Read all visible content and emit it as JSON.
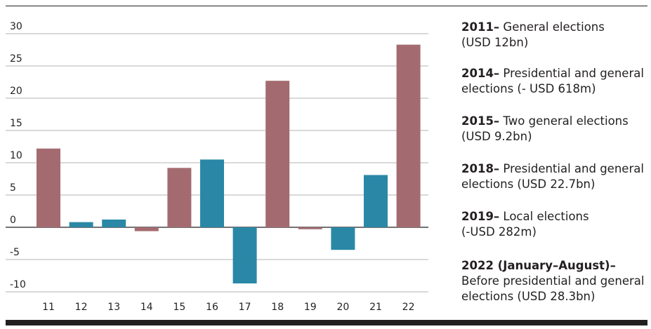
{
  "chart_data": {
    "type": "bar",
    "title": "",
    "xlabel": "",
    "ylabel": "",
    "categories": [
      "11",
      "12",
      "13",
      "14",
      "15",
      "16",
      "17",
      "18",
      "19",
      "20",
      "21",
      "22"
    ],
    "values": [
      12.2,
      0.8,
      1.2,
      -0.6,
      9.2,
      10.5,
      -8.7,
      22.7,
      -0.3,
      -3.5,
      8.1,
      28.3
    ],
    "bar_types": [
      "election",
      "non-election",
      "non-election",
      "election",
      "election",
      "non-election",
      "non-election",
      "election",
      "election",
      "non-election",
      "non-election",
      "election"
    ],
    "colors": {
      "election": "#a36b70",
      "non-election": "#2a88a6"
    },
    "yticks": [
      "30",
      "25",
      "20",
      "15",
      "10",
      "5",
      "0",
      "-5",
      "-10"
    ],
    "ytick_values": [
      30,
      25,
      20,
      15,
      10,
      5,
      0,
      -5,
      -10
    ],
    "ylim": [
      -10,
      30
    ],
    "grid": true
  },
  "notes": [
    {
      "year": "2011–",
      "line1": " General elections",
      "line2": "(USD 12bn)"
    },
    {
      "year": "2014–",
      "line1": " Presidential and general",
      "line2": "elections (- USD 618m)"
    },
    {
      "year": "2015–",
      "line1": " Two general elections",
      "line2": "(USD 9.2bn)"
    },
    {
      "year": "2018–",
      "line1": " Presidential and general",
      "line2": "elections (USD 22.7bn)"
    },
    {
      "year": "2019–",
      "line1": " Local elections",
      "line2": "(-USD 282m)"
    },
    {
      "year": "2022 (January–August)–",
      "line1": "",
      "line2": "Before presidential and general",
      "line3": "elections (USD 28.3bn)"
    }
  ]
}
